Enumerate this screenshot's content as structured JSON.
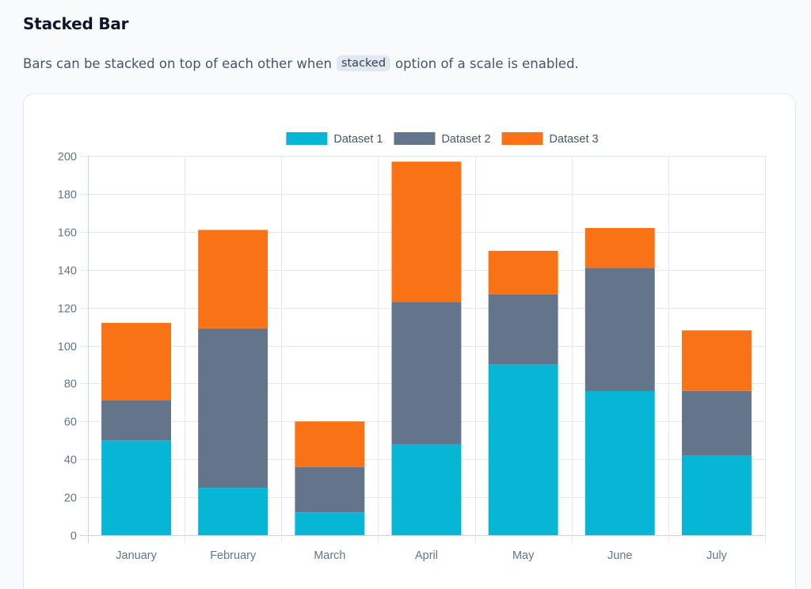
{
  "header": {
    "title": "Stacked Bar",
    "description_before": "Bars can be stacked on top of each other when",
    "description_code": "stacked",
    "description_after": "option of a scale is enabled."
  },
  "chart_data": {
    "type": "bar",
    "stacked": true,
    "title": "",
    "xlabel": "",
    "ylabel": "",
    "categories": [
      "January",
      "February",
      "March",
      "April",
      "May",
      "June",
      "July"
    ],
    "series": [
      {
        "name": "Dataset 1",
        "color": "#06b6d4",
        "values": [
          50,
          25,
          12,
          48,
          90,
          76,
          42
        ]
      },
      {
        "name": "Dataset 2",
        "color": "#64748b",
        "values": [
          21,
          84,
          24,
          75,
          37,
          65,
          34
        ]
      },
      {
        "name": "Dataset 3",
        "color": "#f97316",
        "values": [
          41,
          52,
          24,
          74,
          23,
          21,
          32
        ]
      }
    ],
    "ylim": [
      0,
      200
    ],
    "yticks": [
      0,
      20,
      40,
      60,
      80,
      100,
      120,
      140,
      160,
      180,
      200
    ],
    "grid": true,
    "legend_position": "top-center"
  }
}
